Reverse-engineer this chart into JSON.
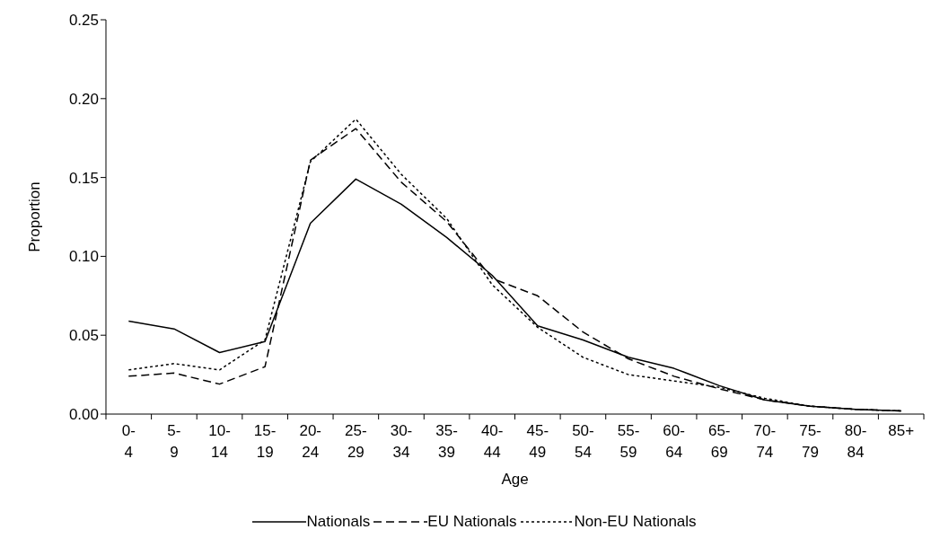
{
  "chart_data": {
    "type": "line",
    "xlabel": "Age",
    "ylabel": "Proportion",
    "categories": [
      "0-4",
      "5-9",
      "10-14",
      "15-19",
      "20-24",
      "25-29",
      "30-34",
      "35-39",
      "40-44",
      "45-49",
      "50-54",
      "55-59",
      "60-64",
      "65-69",
      "70-74",
      "75-79",
      "80-84",
      "85+"
    ],
    "series": [
      {
        "name": "Nationals",
        "color": "#000000",
        "line_style": "solid",
        "values": [
          0.059,
          0.054,
          0.039,
          0.046,
          0.121,
          0.149,
          0.133,
          0.112,
          0.088,
          0.056,
          0.047,
          0.036,
          0.029,
          0.018,
          0.009,
          0.005,
          0.003,
          0.002
        ]
      },
      {
        "name": "EU Nationals",
        "color": "#000000",
        "line_style": "dashed",
        "values": [
          0.024,
          0.026,
          0.019,
          0.03,
          0.161,
          0.181,
          0.147,
          0.122,
          0.086,
          0.075,
          0.052,
          0.035,
          0.024,
          0.016,
          0.009,
          0.005,
          0.003,
          0.002
        ]
      },
      {
        "name": "Non-EU Nationals",
        "color": "#000000",
        "line_style": "dotted",
        "values": [
          0.028,
          0.032,
          0.028,
          0.047,
          0.16,
          0.187,
          0.152,
          0.124,
          0.082,
          0.055,
          0.036,
          0.025,
          0.021,
          0.017,
          0.01,
          0.005,
          0.003,
          0.002
        ]
      }
    ],
    "ylim": [
      0,
      0.25
    ],
    "yticks": [
      {
        "value": 0,
        "label": "0.00"
      },
      {
        "value": 0.05,
        "label": "0.05"
      },
      {
        "value": 0.1,
        "label": "0.10"
      },
      {
        "value": 0.15,
        "label": "0.15"
      },
      {
        "value": 0.2,
        "label": "0.20"
      },
      {
        "value": 0.25,
        "label": "0.25"
      }
    ],
    "grid": false,
    "legend": "bottom",
    "marker": "none"
  }
}
